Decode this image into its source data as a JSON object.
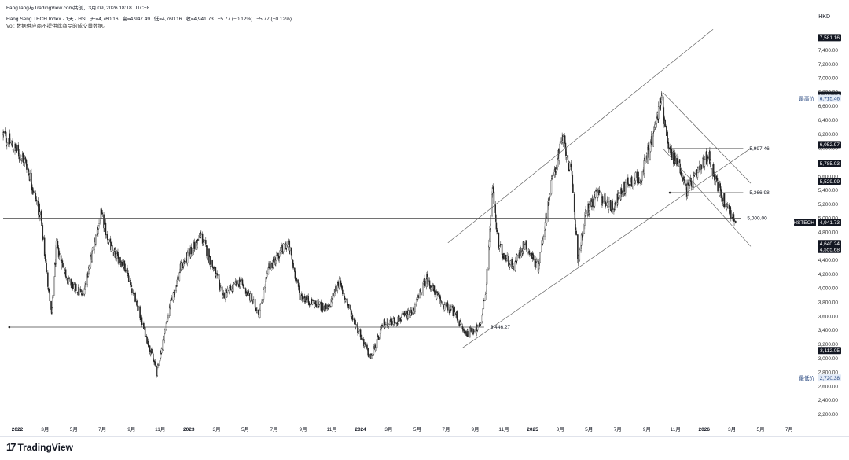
{
  "header": {
    "author_line": "FangTang与TradingView.com共创，3月 09, 2026 18:18 UTC+8",
    "symbol": "Hang Seng TECH Index · 1天 · HSI",
    "open": "开=4,760.16",
    "high": "高=4,947.49",
    "low": "低=4,760.16",
    "close": "收=4,941.73",
    "change": "−5.77 (−0.12%)",
    "change2": "−5.77 (−0.12%)",
    "vol_note": "Vol: 数据供应商不提供此商品的成交量数据。",
    "currency": "HKD"
  },
  "footer": {
    "logo_text": "TradingView",
    "logo_mark": "17"
  },
  "colors": {
    "text": "#131722",
    "line": "#555555",
    "axis_text": "#333333",
    "tag_bg": "#131722"
  },
  "chart_data": {
    "type": "candlestick",
    "symbol_tag": "HSTECH",
    "ylim": [
      2000,
      7700
    ],
    "y_ticks": [
      "7,400.00",
      "7,200.00",
      "7,000.00",
      "6,800.00",
      "6,600.00",
      "6,400.00",
      "6,200.00",
      "6,000.00",
      "5,800.00",
      "5,600.00",
      "5,400.00",
      "5,200.00",
      "5,000.00",
      "4,800.00",
      "4,600.00",
      "4,400.00",
      "4,200.00",
      "4,000.00",
      "3,800.00",
      "3,600.00",
      "3,400.00",
      "3,200.00",
      "3,000.00",
      "2,800.00",
      "2,600.00",
      "2,400.00",
      "2,200.00"
    ],
    "y_tick_values": [
      7400,
      7200,
      7000,
      6800,
      6600,
      6400,
      6200,
      6000,
      5800,
      5600,
      5400,
      5200,
      5000,
      4800,
      4600,
      4400,
      4200,
      4000,
      3800,
      3600,
      3400,
      3200,
      3000,
      2800,
      2600,
      2400,
      2200
    ],
    "x_labels": [
      {
        "date": "2022-01-01",
        "label": "2022",
        "bold": true
      },
      {
        "date": "2022-03-01",
        "label": "3月"
      },
      {
        "date": "2022-05-01",
        "label": "5月"
      },
      {
        "date": "2022-07-01",
        "label": "7月"
      },
      {
        "date": "2022-09-01",
        "label": "9月"
      },
      {
        "date": "2022-11-01",
        "label": "11月"
      },
      {
        "date": "2023-01-01",
        "label": "2023",
        "bold": true
      },
      {
        "date": "2023-03-01",
        "label": "3月"
      },
      {
        "date": "2023-05-01",
        "label": "5月"
      },
      {
        "date": "2023-07-01",
        "label": "7月"
      },
      {
        "date": "2023-09-01",
        "label": "9月"
      },
      {
        "date": "2023-11-01",
        "label": "11月"
      },
      {
        "date": "2024-01-01",
        "label": "2024",
        "bold": true
      },
      {
        "date": "2024-03-01",
        "label": "3月"
      },
      {
        "date": "2024-05-01",
        "label": "5月"
      },
      {
        "date": "2024-07-01",
        "label": "7月"
      },
      {
        "date": "2024-09-01",
        "label": "9月"
      },
      {
        "date": "2024-11-01",
        "label": "11月"
      },
      {
        "date": "2025-01-01",
        "label": "2025",
        "bold": true
      },
      {
        "date": "2025-03-01",
        "label": "3月"
      },
      {
        "date": "2025-05-01",
        "label": "5月"
      },
      {
        "date": "2025-07-01",
        "label": "7月"
      },
      {
        "date": "2025-09-01",
        "label": "9月"
      },
      {
        "date": "2025-11-01",
        "label": "11月"
      },
      {
        "date": "2026-01-01",
        "label": "2026",
        "bold": true
      },
      {
        "date": "2026-03-01",
        "label": "3月"
      },
      {
        "date": "2026-05-01",
        "label": "5月"
      },
      {
        "date": "2026-07-01",
        "label": "7月"
      }
    ],
    "price_path": [
      {
        "date": "2021-12-01",
        "close": 6200
      },
      {
        "date": "2022-01-20",
        "close": 5800
      },
      {
        "date": "2022-02-20",
        "close": 5000
      },
      {
        "date": "2022-03-15",
        "close": 3600
      },
      {
        "date": "2022-03-25",
        "close": 4600
      },
      {
        "date": "2022-04-20",
        "close": 4100
      },
      {
        "date": "2022-05-20",
        "close": 3900
      },
      {
        "date": "2022-06-28",
        "close": 5050
      },
      {
        "date": "2022-07-20",
        "close": 4550
      },
      {
        "date": "2022-08-20",
        "close": 4300
      },
      {
        "date": "2022-09-15",
        "close": 3700
      },
      {
        "date": "2022-10-25",
        "close": 2800
      },
      {
        "date": "2022-11-20",
        "close": 3700
      },
      {
        "date": "2022-12-15",
        "close": 4300
      },
      {
        "date": "2023-01-27",
        "close": 4750
      },
      {
        "date": "2023-03-15",
        "close": 3900
      },
      {
        "date": "2023-04-20",
        "close": 4100
      },
      {
        "date": "2023-05-31",
        "close": 3650
      },
      {
        "date": "2023-06-20",
        "close": 4300
      },
      {
        "date": "2023-07-31",
        "close": 4650
      },
      {
        "date": "2023-08-25",
        "close": 3900
      },
      {
        "date": "2023-09-20",
        "close": 3800
      },
      {
        "date": "2023-10-25",
        "close": 3700
      },
      {
        "date": "2023-11-15",
        "close": 4100
      },
      {
        "date": "2023-12-15",
        "close": 3600
      },
      {
        "date": "2024-01-22",
        "close": 3000
      },
      {
        "date": "2024-02-20",
        "close": 3500
      },
      {
        "date": "2024-03-20",
        "close": 3550
      },
      {
        "date": "2024-04-20",
        "close": 3650
      },
      {
        "date": "2024-05-20",
        "close": 4150
      },
      {
        "date": "2024-06-20",
        "close": 3800
      },
      {
        "date": "2024-07-20",
        "close": 3650
      },
      {
        "date": "2024-08-10",
        "close": 3350
      },
      {
        "date": "2024-09-11",
        "close": 3450
      },
      {
        "date": "2024-09-24",
        "close": 4000
      },
      {
        "date": "2024-10-08",
        "close": 5450
      },
      {
        "date": "2024-10-20",
        "close": 4600
      },
      {
        "date": "2024-11-20",
        "close": 4300
      },
      {
        "date": "2024-12-15",
        "close": 4650
      },
      {
        "date": "2025-01-13",
        "close": 4300
      },
      {
        "date": "2025-02-10",
        "close": 5500
      },
      {
        "date": "2025-03-07",
        "close": 6150
      },
      {
        "date": "2025-03-25",
        "close": 5600
      },
      {
        "date": "2025-04-08",
        "close": 4400
      },
      {
        "date": "2025-04-25",
        "close": 5100
      },
      {
        "date": "2025-05-20",
        "close": 5350
      },
      {
        "date": "2025-06-20",
        "close": 5150
      },
      {
        "date": "2025-07-20",
        "close": 5500
      },
      {
        "date": "2025-08-20",
        "close": 5600
      },
      {
        "date": "2025-09-15",
        "close": 6200
      },
      {
        "date": "2025-10-02",
        "close": 6715
      },
      {
        "date": "2025-10-20",
        "close": 5950
      },
      {
        "date": "2025-11-10",
        "close": 5750
      },
      {
        "date": "2025-11-25",
        "close": 5400
      },
      {
        "date": "2025-12-15",
        "close": 5600
      },
      {
        "date": "2026-01-10",
        "close": 5900
      },
      {
        "date": "2026-02-05",
        "close": 5350
      },
      {
        "date": "2026-02-25",
        "close": 5100
      },
      {
        "date": "2026-03-09",
        "close": 4941.73
      }
    ],
    "horizontal_levels": [
      {
        "label": "3,446.27",
        "value": 3446.27,
        "from": "2021-12-15",
        "to": "2024-09-20"
      },
      {
        "label": "5,000.00",
        "value": 5000.0,
        "from": "2021-12-01",
        "to": "2026-03-20"
      },
      {
        "label": "5,997.46",
        "value": 5997.46,
        "from": "2025-10-20",
        "to": "2026-03-25"
      },
      {
        "label": "5,366.98",
        "value": 5366.98,
        "from": "2025-10-20",
        "to": "2026-03-25"
      }
    ],
    "trend_lines": [
      {
        "name": "channel-upper",
        "from": {
          "date": "2024-07-05",
          "value": 4650
        },
        "to": {
          "date": "2026-01-20",
          "value": 7700
        }
      },
      {
        "name": "channel-lower",
        "from": {
          "date": "2024-08-05",
          "value": 3150
        },
        "to": {
          "date": "2026-04-10",
          "value": 6000
        }
      },
      {
        "name": "downtrend-upper",
        "from": {
          "date": "2025-10-05",
          "value": 6800
        },
        "to": {
          "date": "2026-04-10",
          "value": 5500
        }
      },
      {
        "name": "downtrend-lower",
        "from": {
          "date": "2025-10-05",
          "value": 6000
        },
        "to": {
          "date": "2026-04-10",
          "value": 4600
        }
      }
    ],
    "price_tags": [
      {
        "label": "7,581.16",
        "value": 7581.16,
        "style": "dark"
      },
      {
        "label": "6,759.34",
        "value": 6759.34,
        "style": "dark"
      },
      {
        "label": "6,715.46",
        "value": 6715.46,
        "style": "light",
        "caption": "最高价"
      },
      {
        "label": "6,052.97",
        "value": 6052.97,
        "style": "dark"
      },
      {
        "label": "5,785.03",
        "value": 5785.03,
        "style": "dark"
      },
      {
        "label": "5,529.99",
        "value": 5529.99,
        "style": "dark"
      },
      {
        "label": "4,941.73",
        "value": 4941.73,
        "style": "dark",
        "caption": "HSTECH"
      },
      {
        "label": "4,640.24",
        "value": 4640.24,
        "style": "dark"
      },
      {
        "label": "4,555.68",
        "value": 4555.68,
        "style": "dark"
      },
      {
        "label": "3,112.05",
        "value": 3112.05,
        "style": "dark"
      },
      {
        "label": "2,720.38",
        "value": 2720.38,
        "style": "light",
        "caption": "最低价"
      }
    ]
  }
}
